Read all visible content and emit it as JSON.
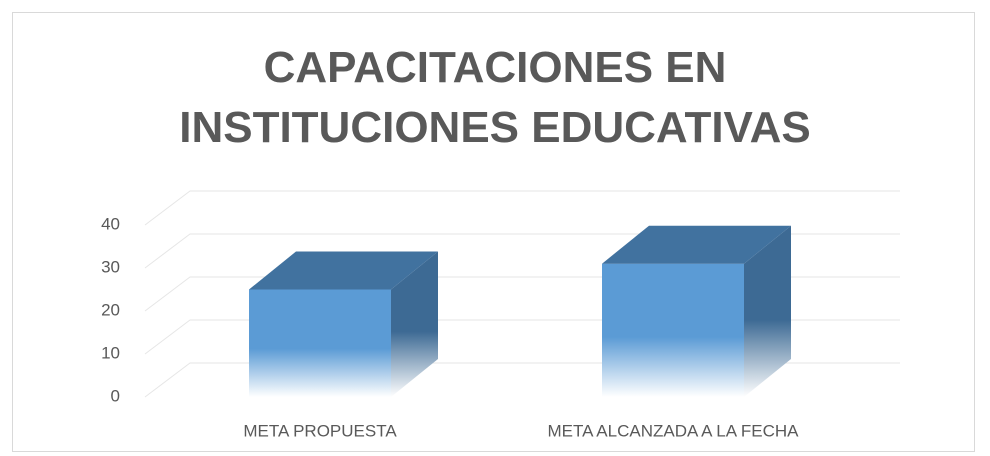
{
  "chart_data": {
    "type": "bar3d",
    "title": "CAPACITACIONES EN INSTITUCIONES EDUCATIVAS",
    "categories": [
      "META PROPUESTA",
      "META ALCANZADA A LA FECHA"
    ],
    "values": [
      25,
      31
    ],
    "color": "#5b9bd5",
    "ylim": [
      0,
      40
    ],
    "yticks": [
      0,
      10,
      20,
      30,
      40
    ],
    "grid": true
  }
}
